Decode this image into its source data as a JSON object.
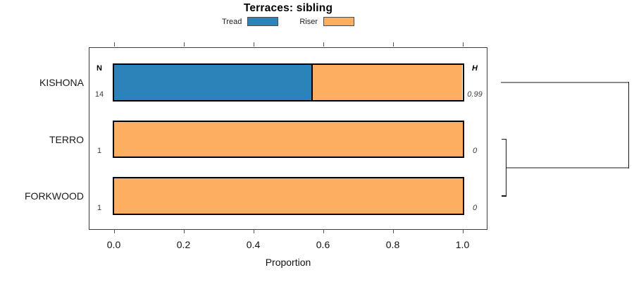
{
  "chart_data": {
    "type": "bar",
    "orientation": "horizontal",
    "stacked": true,
    "title": "Terraces: sibling",
    "xlabel": "Proportion",
    "xlim": [
      0,
      1
    ],
    "xticks": [
      0.0,
      0.2,
      0.4,
      0.6,
      0.8,
      1.0
    ],
    "xtick_labels": [
      "0.0",
      "0.2",
      "0.4",
      "0.6",
      "0.8",
      "1.0"
    ],
    "grid": false,
    "legend_position": "top-center",
    "legend": [
      {
        "label": "Tread",
        "color": "#2b83ba"
      },
      {
        "label": "Riser",
        "color": "#fdae61"
      }
    ],
    "columns": {
      "n_header": "N",
      "h_header": "H"
    },
    "categories": [
      "KISHONA",
      "TERRO",
      "FORKWOOD"
    ],
    "rows": [
      {
        "label": "KISHONA",
        "n": "14",
        "h": "0.99",
        "segments": [
          {
            "name": "Tread",
            "value": 0.5714,
            "color": "#2b83ba"
          },
          {
            "name": "Riser",
            "value": 0.4286,
            "color": "#fdae61"
          }
        ]
      },
      {
        "label": "TERRO",
        "n": "1",
        "h": "0",
        "segments": [
          {
            "name": "Riser",
            "value": 1.0,
            "color": "#fdae61"
          }
        ]
      },
      {
        "label": "FORKWOOD",
        "n": "1",
        "h": "0",
        "segments": [
          {
            "name": "Riser",
            "value": 1.0,
            "color": "#fdae61"
          }
        ]
      }
    ],
    "dendrogram": {
      "leaves": [
        "KISHONA",
        "TERRO",
        "FORKWOOD"
      ],
      "merges": [
        {
          "members": [
            "TERRO",
            "FORKWOOD"
          ],
          "height": 0.0
        },
        {
          "members": [
            "KISHONA",
            "TERRO+FORKWOOD"
          ],
          "height": 1.0
        }
      ],
      "line_color_horizontal": "#8c8c8c",
      "line_color_vertical": "#1a1a1a"
    }
  }
}
